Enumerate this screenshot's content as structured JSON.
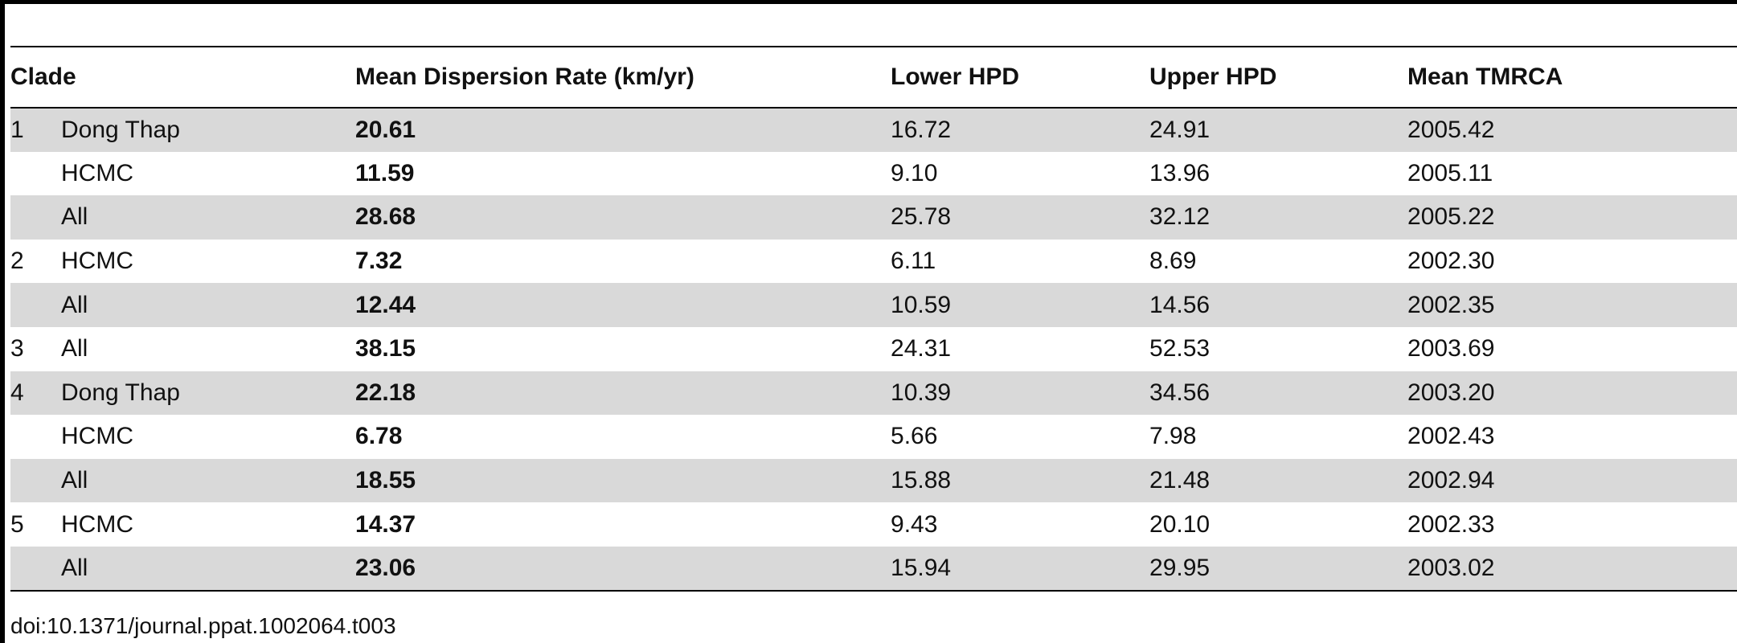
{
  "table": {
    "headers": {
      "clade": "Clade",
      "rate": "Mean Dispersion Rate (km/yr)",
      "lower": "Lower HPD",
      "upper": "Upper HPD",
      "tmrca": "Mean TMRCA"
    },
    "rows": [
      {
        "clade": "1",
        "location": "Dong Thap",
        "rate": "20.61",
        "lower": "16.72",
        "upper": "24.91",
        "tmrca": "2005.42"
      },
      {
        "clade": "",
        "location": "HCMC",
        "rate": "11.59",
        "lower": "9.10",
        "upper": "13.96",
        "tmrca": "2005.11"
      },
      {
        "clade": "",
        "location": "All",
        "rate": "28.68",
        "lower": "25.78",
        "upper": "32.12",
        "tmrca": "2005.22"
      },
      {
        "clade": "2",
        "location": "HCMC",
        "rate": "7.32",
        "lower": "6.11",
        "upper": "8.69",
        "tmrca": "2002.30"
      },
      {
        "clade": "",
        "location": "All",
        "rate": "12.44",
        "lower": "10.59",
        "upper": "14.56",
        "tmrca": "2002.35"
      },
      {
        "clade": "3",
        "location": "All",
        "rate": "38.15",
        "lower": "24.31",
        "upper": "52.53",
        "tmrca": "2003.69"
      },
      {
        "clade": "4",
        "location": "Dong Thap",
        "rate": "22.18",
        "lower": "10.39",
        "upper": "34.56",
        "tmrca": "2003.20"
      },
      {
        "clade": "",
        "location": "HCMC",
        "rate": "6.78",
        "lower": "5.66",
        "upper": "7.98",
        "tmrca": "2002.43"
      },
      {
        "clade": "",
        "location": "All",
        "rate": "18.55",
        "lower": "15.88",
        "upper": "21.48",
        "tmrca": "2002.94"
      },
      {
        "clade": "5",
        "location": "HCMC",
        "rate": "14.37",
        "lower": "9.43",
        "upper": "20.10",
        "tmrca": "2002.33"
      },
      {
        "clade": "",
        "location": "All",
        "rate": "23.06",
        "lower": "15.94",
        "upper": "29.95",
        "tmrca": "2003.02"
      }
    ]
  },
  "footer": {
    "doi": "doi:10.1371/journal.ppat.1002064.t003"
  }
}
